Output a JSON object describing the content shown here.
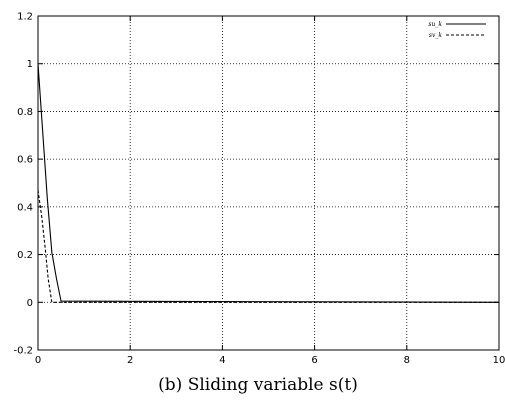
{
  "chart_data": {
    "type": "line",
    "caption": "(b) Sliding variable s(t)",
    "xlim": [
      0,
      10
    ],
    "ylim": [
      -0.2,
      1.2
    ],
    "x_ticks": [
      0,
      2,
      4,
      6,
      8,
      10
    ],
    "y_ticks": [
      -0.2,
      0,
      0.2,
      0.4,
      0.6,
      0.8,
      1,
      1.2
    ],
    "x_tick_labels": [
      "0",
      "2",
      "4",
      "6",
      "8",
      "10"
    ],
    "y_tick_labels": [
      "-0.2",
      "0",
      "0.2",
      "0.4",
      "0.6",
      "0.8",
      "1",
      "1.2"
    ],
    "grid": true,
    "legend_position": "top-right",
    "series": [
      {
        "name": "su_k",
        "style": "solid",
        "color": "#000000",
        "points": [
          [
            0,
            1.0
          ],
          [
            0.1,
            0.72
          ],
          [
            0.2,
            0.44
          ],
          [
            0.3,
            0.21
          ],
          [
            0.4,
            0.1
          ],
          [
            0.5,
            0.005
          ],
          [
            10,
            0.0
          ]
        ]
      },
      {
        "name": "sv_k",
        "style": "dashed",
        "color": "#000000",
        "points": [
          [
            0,
            0.47
          ],
          [
            0.08,
            0.36
          ],
          [
            0.16,
            0.22
          ],
          [
            0.22,
            0.1
          ],
          [
            0.3,
            0.0
          ],
          [
            10,
            0.0
          ]
        ]
      }
    ]
  }
}
